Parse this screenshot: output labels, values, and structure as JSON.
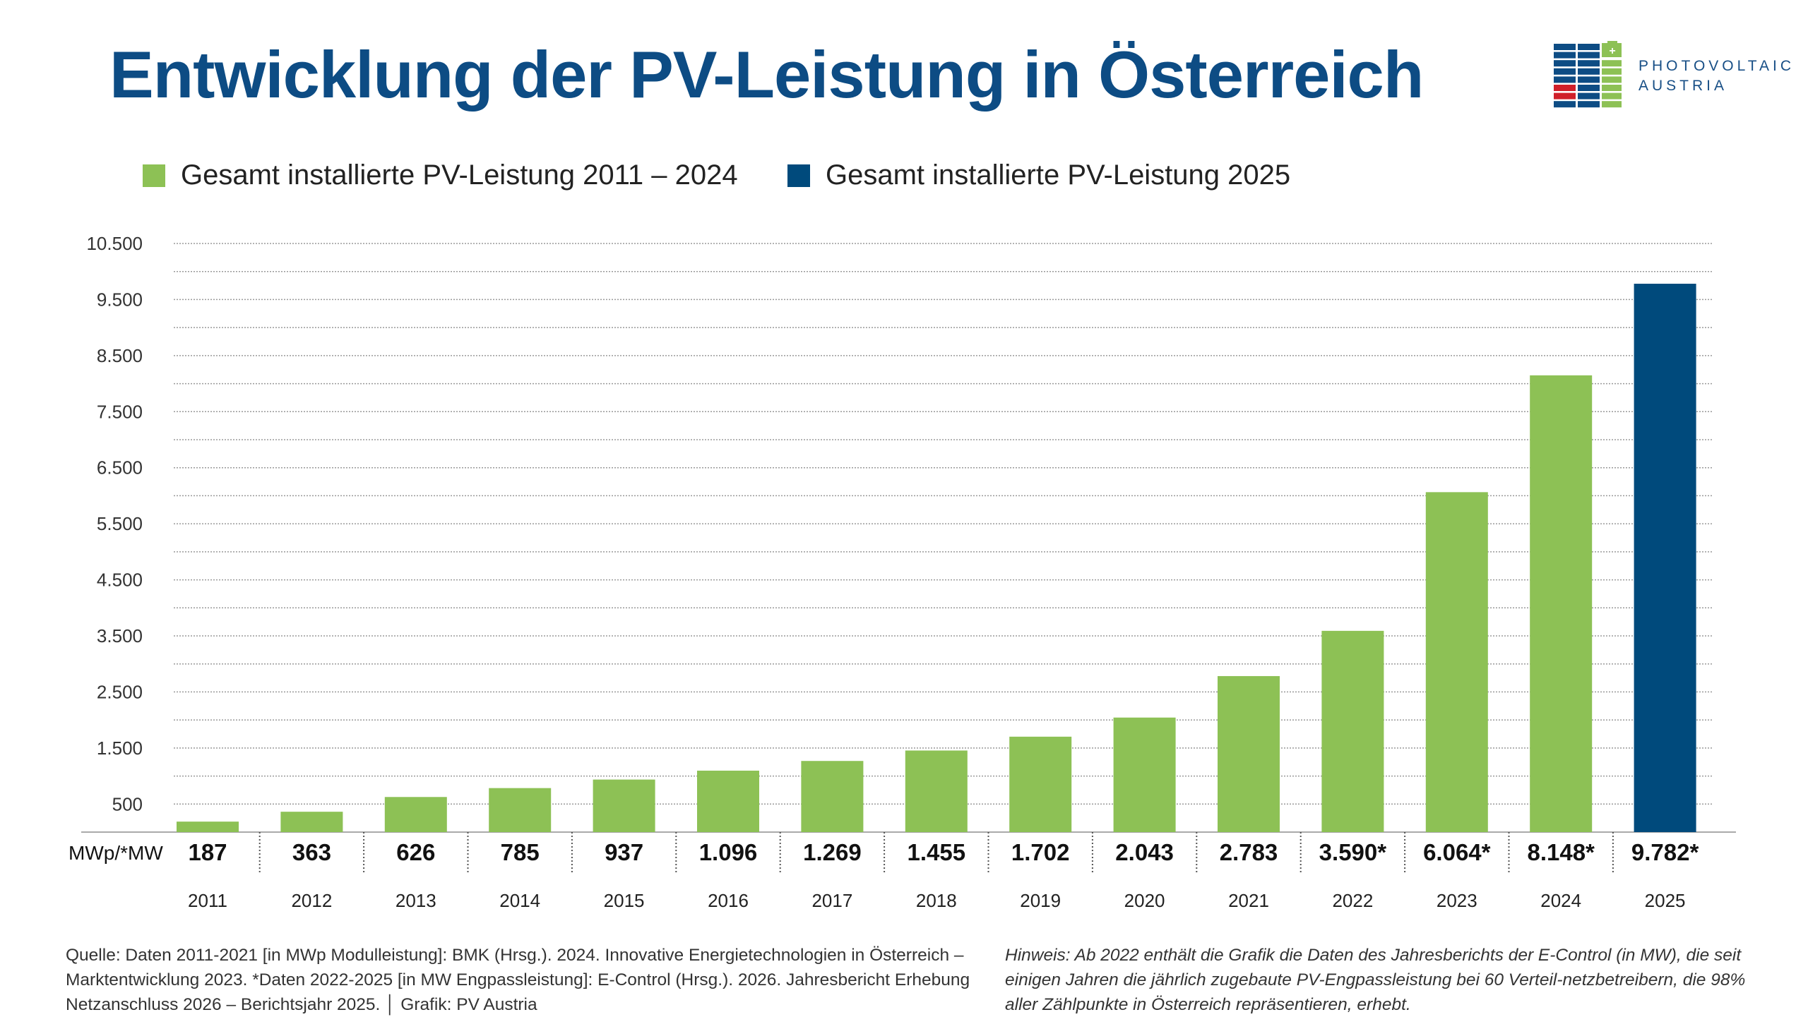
{
  "title": "Entwicklung der PV-Leistung in Österreich",
  "logo": {
    "line1": "PHOTOVOLTAIC",
    "line2": "AUSTRIA"
  },
  "colors": {
    "title": "#0d4c84",
    "green": "#8dc155",
    "blue": "#004a7c"
  },
  "chart_data": {
    "type": "bar",
    "title": "Entwicklung der PV-Leistung in Österreich",
    "categories": [
      "2011",
      "2012",
      "2013",
      "2014",
      "2015",
      "2016",
      "2017",
      "2018",
      "2019",
      "2020",
      "2021",
      "2022",
      "2023",
      "2024",
      "2025"
    ],
    "values": [
      187,
      363,
      626,
      785,
      937,
      1096,
      1269,
      1455,
      1702,
      2043,
      2783,
      3590,
      6064,
      8148,
      9782
    ],
    "value_labels": [
      "187",
      "363",
      "626",
      "785",
      "937",
      "1.096",
      "1.269",
      "1.455",
      "1.702",
      "2.043",
      "2.783",
      "3.590*",
      "6.064*",
      "8.148*",
      "9.782*"
    ],
    "series_index": [
      0,
      0,
      0,
      0,
      0,
      0,
      0,
      0,
      0,
      0,
      0,
      0,
      0,
      0,
      1
    ],
    "series": [
      {
        "name": "Gesamt installierte PV-Leistung 2011 – 2024",
        "color": "#8dc155"
      },
      {
        "name": "Gesamt installierte PV-Leistung 2025",
        "color": "#004a7c"
      }
    ],
    "unit_label": "MWp/*MW",
    "ylim": [
      0,
      10500
    ],
    "yticks": [
      "500",
      "1.500",
      "2.500",
      "3.500",
      "4.500",
      "5.500",
      "6.500",
      "7.500",
      "8.500",
      "9.500",
      "10.500"
    ],
    "ytick_values": [
      500,
      1500,
      2500,
      3500,
      4500,
      5500,
      6500,
      7500,
      8500,
      9500,
      10500
    ],
    "grid": true,
    "grid_step": 500,
    "legend": "top-left"
  },
  "footer": {
    "source": "Quelle: Daten 2011-2021 [in MWp Modulleistung]: BMK (Hrsg.). 2024. Innovative Energietechnologien in Österreich – Marktentwicklung 2023. *Daten 2022-2025 [in MW Engpassleistung]: E-Control (Hrsg.). 2026. Jahresbericht Erhebung Netzanschluss 2026 – Berichtsjahr 2025. │ Grafik: PV Austria",
    "note": "Hinweis: Ab 2022 enthält die Grafik die Daten des Jahresberichts der E-Control (in MW), die seit einigen Jahren die jährlich zugebaute PV-Engpassleistung bei 60 Verteil-netzbetreibern, die 98% aller Zählpunkte in Österreich repräsentieren, erhebt."
  }
}
